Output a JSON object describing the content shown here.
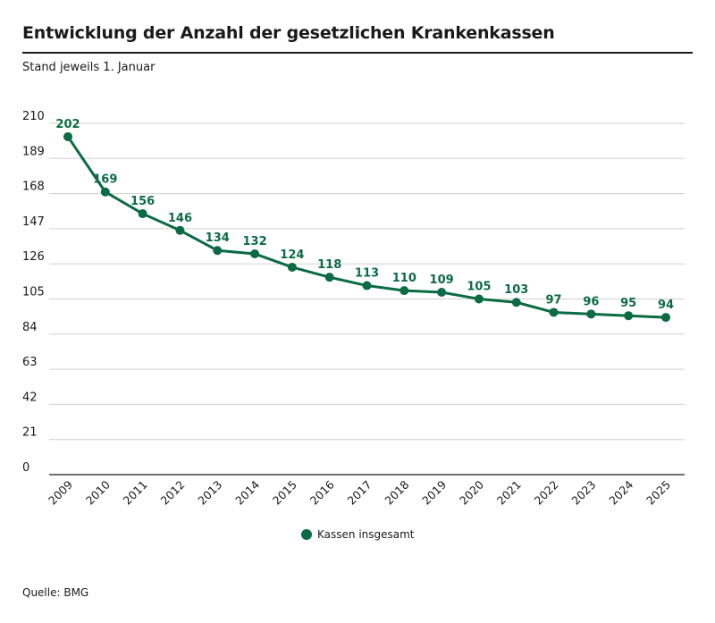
{
  "header": {
    "title": "Entwicklung der Anzahl der gesetzlichen Krankenkassen",
    "subtitle": "Stand jeweils 1. Januar"
  },
  "legend": {
    "label": "Kassen insgesamt"
  },
  "footer": {
    "source": "Quelle: BMG"
  },
  "colors": {
    "series": "#0b6b45",
    "grid": "#d0d0d0",
    "axis": "#1a1a1a"
  },
  "chart_data": {
    "type": "line",
    "title": "Entwicklung der Anzahl der gesetzlichen Krankenkassen",
    "subtitle": "Stand jeweils 1. Januar",
    "xlabel": "",
    "ylabel": "",
    "ylim": [
      0,
      210
    ],
    "yticks": [
      0,
      21,
      42,
      63,
      84,
      105,
      126,
      147,
      168,
      189,
      210
    ],
    "categories": [
      "2009",
      "2010",
      "2011",
      "2012",
      "2013",
      "2014",
      "2015",
      "2016",
      "2017",
      "2018",
      "2019",
      "2020",
      "2021",
      "2022",
      "2023",
      "2024",
      "2025"
    ],
    "series": [
      {
        "name": "Kassen insgesamt",
        "values": [
          202,
          169,
          156,
          146,
          134,
          132,
          124,
          118,
          113,
          110,
          109,
          105,
          103,
          97,
          96,
          95,
          94
        ]
      }
    ],
    "grid": true,
    "legend_position": "bottom"
  }
}
